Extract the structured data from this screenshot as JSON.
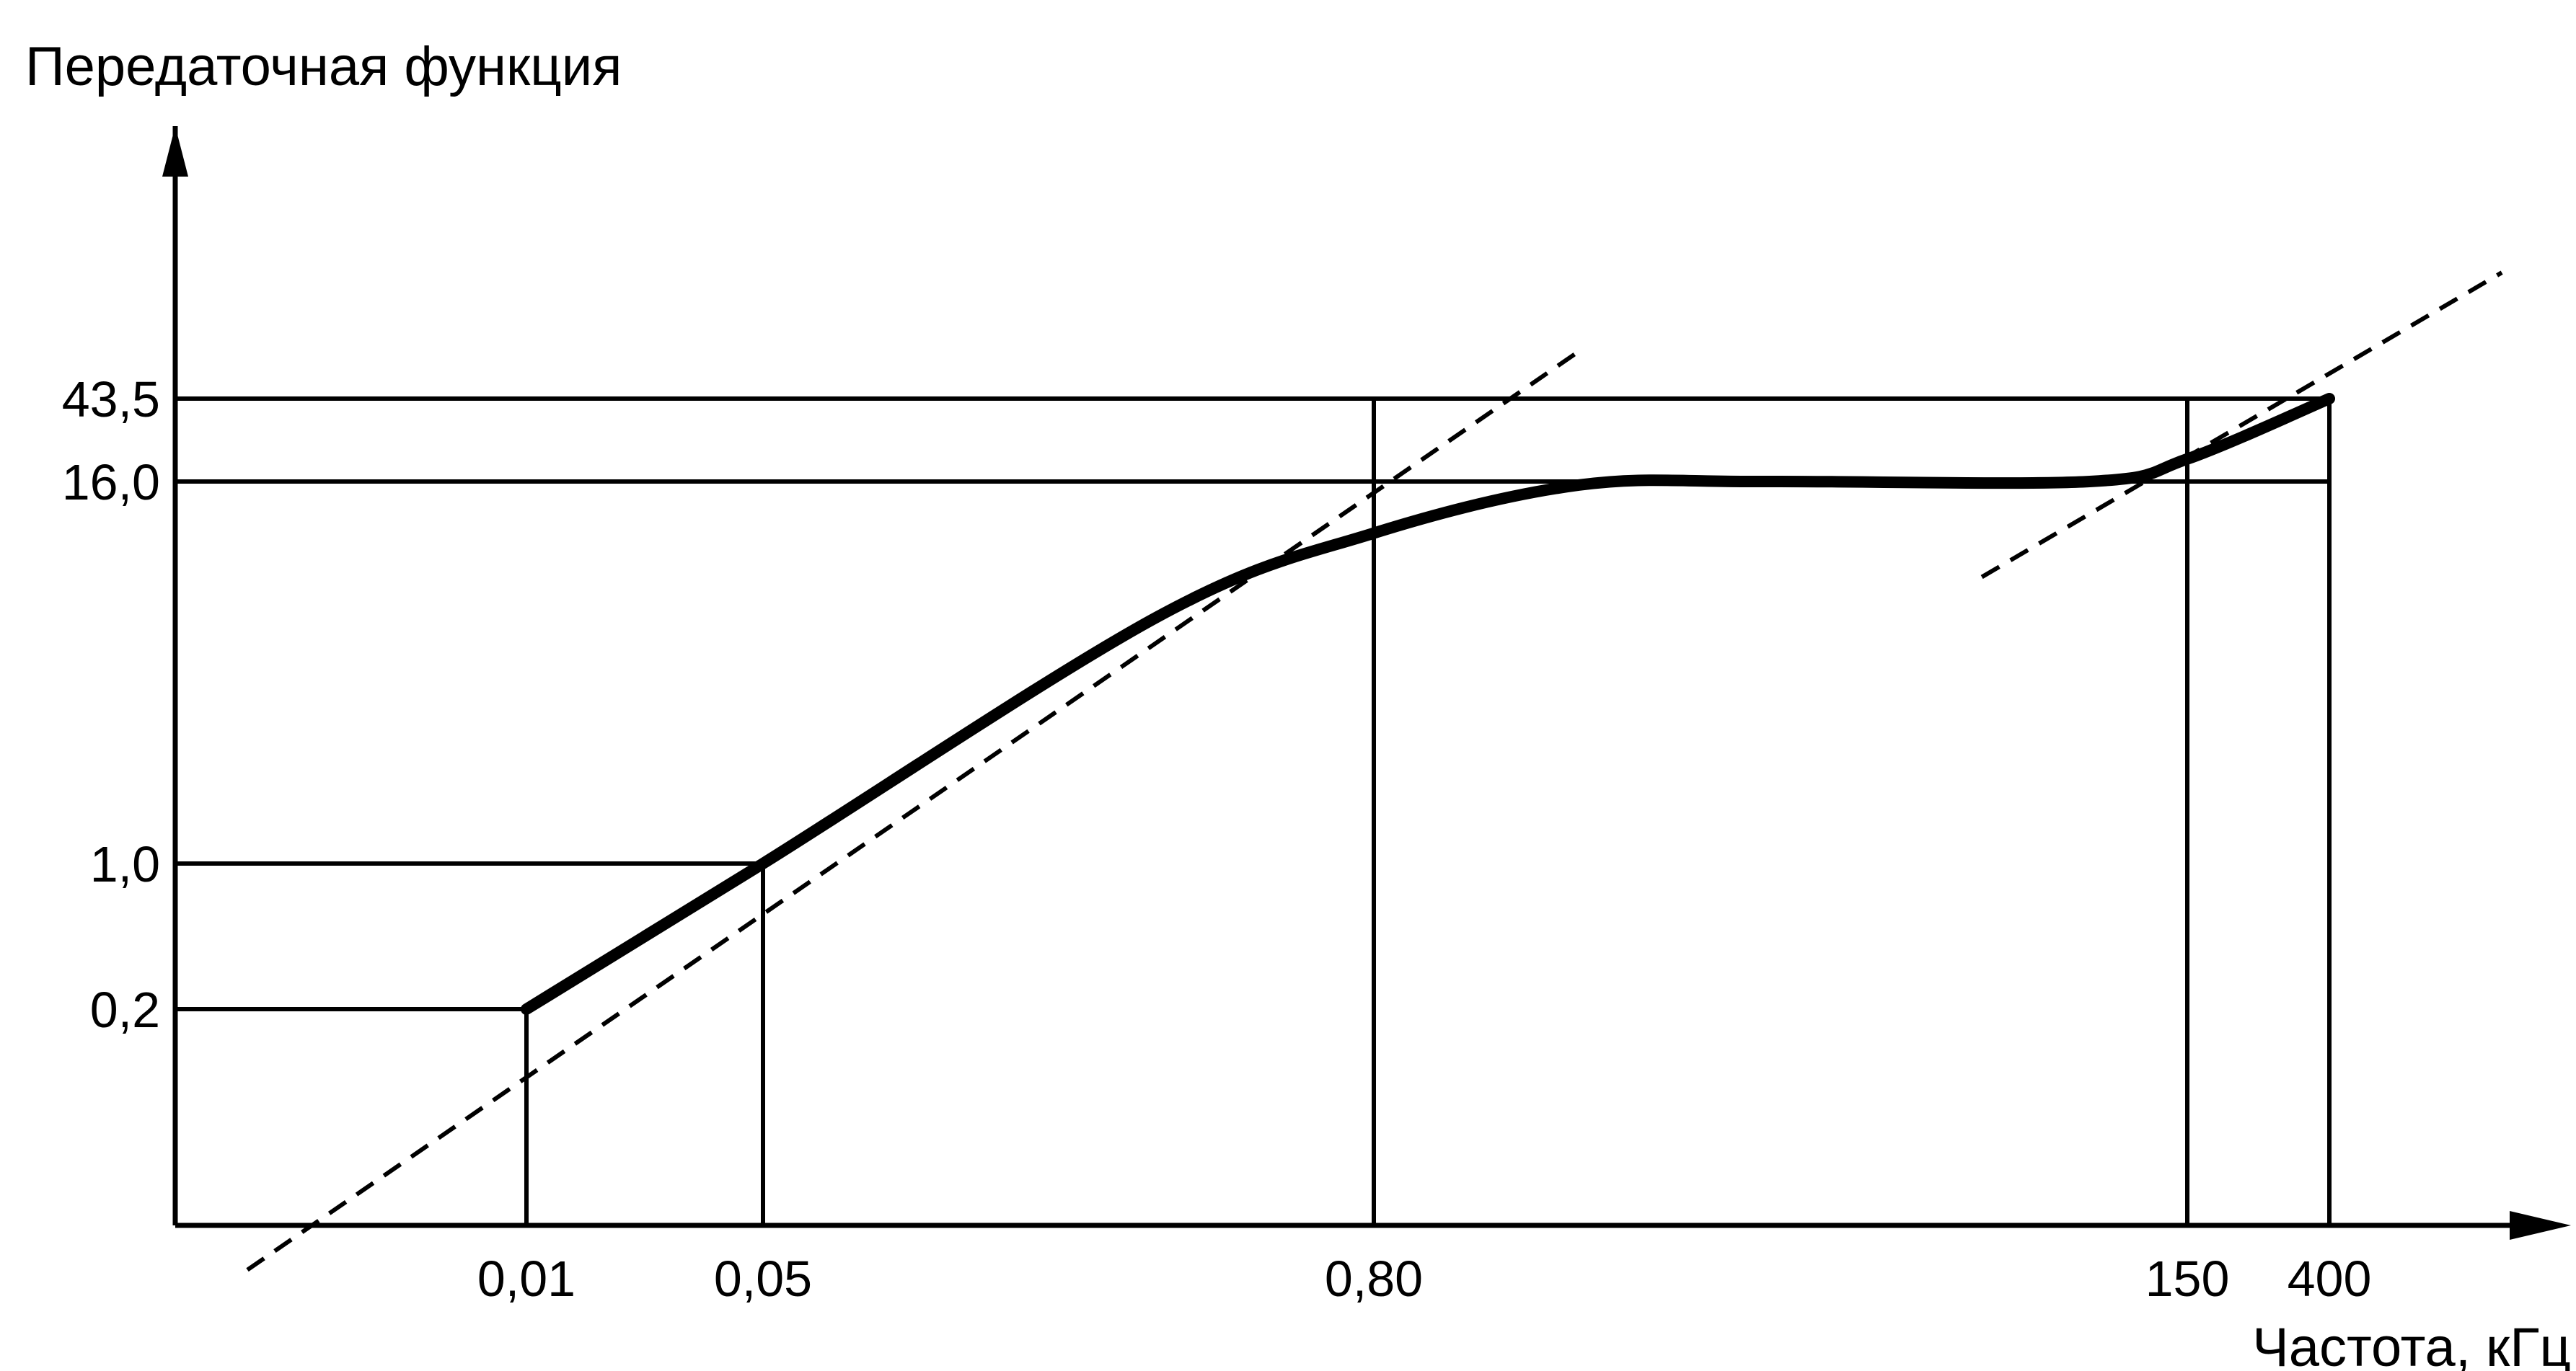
{
  "chart_data": {
    "type": "line",
    "ylabel": "Передаточная функция",
    "xlabel": "Частота, кГц",
    "x_scale": "log",
    "y_scale": "log",
    "x_ticks": [
      {
        "value": 0.01,
        "label": "0,01"
      },
      {
        "value": 0.05,
        "label": "0,05"
      },
      {
        "value": 0.8,
        "label": "0,80"
      },
      {
        "value": 150,
        "label": "150"
      },
      {
        "value": 400,
        "label": "400"
      }
    ],
    "y_ticks": [
      {
        "value": 0.2,
        "label": "0,2"
      },
      {
        "value": 1.0,
        "label": "1,0"
      },
      {
        "value": 16.0,
        "label": "16,0"
      },
      {
        "value": 43.5,
        "label": "43,5"
      }
    ],
    "series": [
      {
        "style": "solid-thick",
        "x": [
          0.01,
          0.05,
          0.3,
          0.8,
          3,
          10,
          80,
          150,
          400
        ],
        "y": [
          0.2,
          1.0,
          6.0,
          11.0,
          15.6,
          16.0,
          16.0,
          21.0,
          43.5
        ]
      },
      {
        "style": "dashed",
        "x": [
          0.003,
          3.0
        ],
        "y": [
          0.06,
          60.0
        ]
      },
      {
        "style": "dashed",
        "x": [
          40,
          1000
        ],
        "y": [
          8.0,
          102.0
        ]
      }
    ],
    "reference_lines": [
      {
        "orientation": "horizontal",
        "y": 0.2,
        "x_end": 0.01
      },
      {
        "orientation": "horizontal",
        "y": 1.0,
        "x_end": 0.05
      },
      {
        "orientation": "horizontal",
        "y": 16.0,
        "x_end": 400
      },
      {
        "orientation": "horizontal",
        "y": 43.5,
        "x_end": 400
      },
      {
        "orientation": "vertical",
        "x": 0.01,
        "y_end": 0.2
      },
      {
        "orientation": "vertical",
        "x": 0.05,
        "y_end": 1.0
      },
      {
        "orientation": "vertical",
        "x": 0.8,
        "y_end": 43.5
      },
      {
        "orientation": "vertical",
        "x": 150,
        "y_end": 43.5
      },
      {
        "orientation": "vertical",
        "x": 400,
        "y_end": 43.5
      }
    ],
    "grid": false,
    "legend": "none"
  }
}
